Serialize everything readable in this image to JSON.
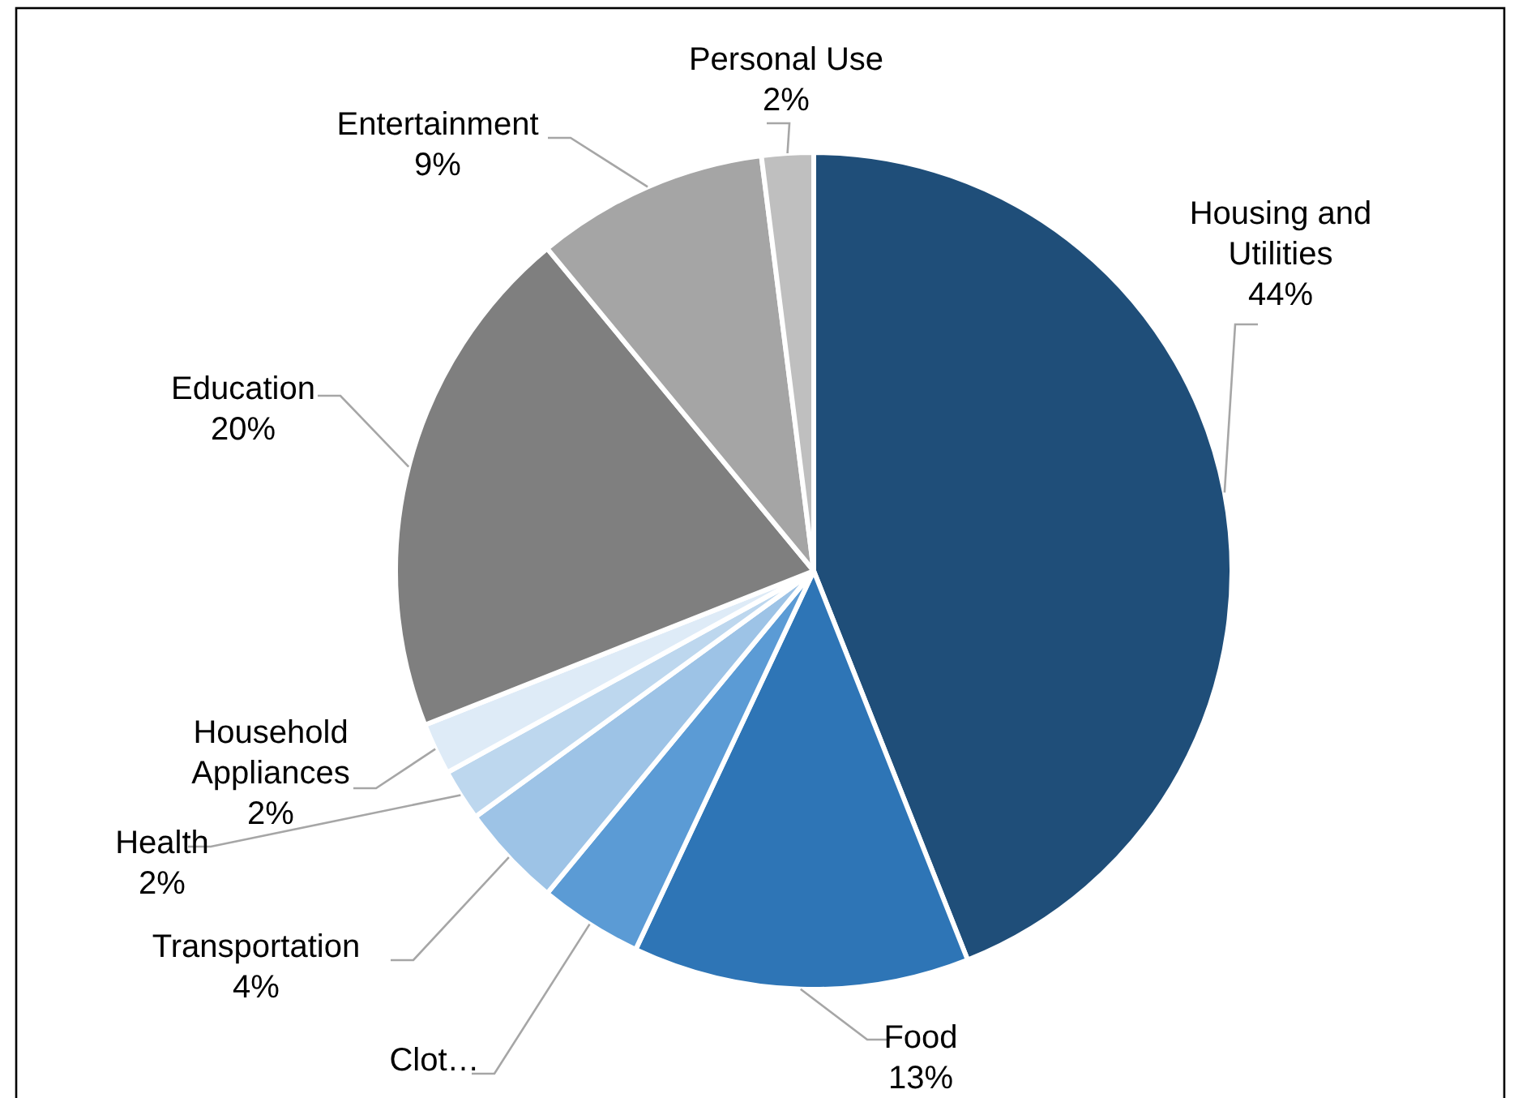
{
  "chart_data": {
    "type": "pie",
    "categories": [
      "Housing and Utilities",
      "Food",
      "Clot…",
      "Transportation",
      "Health",
      "Household Appliances",
      "Education",
      "Entertainment",
      "Personal Use"
    ],
    "values": [
      44,
      13,
      4,
      4,
      2,
      2,
      20,
      9,
      2
    ],
    "value_labels": [
      "44%",
      "13%",
      null,
      "4%",
      "2%",
      "2%",
      "20%",
      "9%",
      "2%"
    ],
    "colors": [
      "#1f4e79",
      "#2e75b6",
      "#5b9bd5",
      "#9dc3e6",
      "#bdd7ee",
      "#deebf7",
      "#7f7f7f",
      "#a5a5a5",
      "#bfbfbf"
    ],
    "legend": false
  }
}
